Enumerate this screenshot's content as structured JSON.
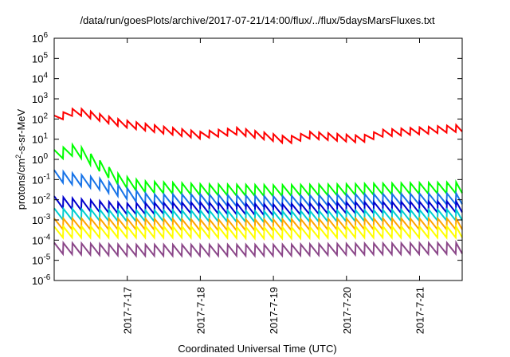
{
  "chart_data": {
    "type": "line",
    "title": "/data/run/goesPlots/archive/2017-07-21/14:00/flux/../flux/5daysMarsFluxes.txt",
    "xlabel": "Coordinated Universal Time (UTC)",
    "ylabel": {
      "prefix": "protons/cm",
      "sup": "2",
      "suffix": "-s-sr-MeV"
    },
    "yscale": "log",
    "ylim_exponents": [
      -6,
      6
    ],
    "y_tick_exponents": [
      -6,
      -5,
      -4,
      -3,
      -2,
      -1,
      0,
      1,
      2,
      3,
      4,
      5,
      6
    ],
    "y_tick_base": "10",
    "xlim": [
      "2017-07-16 00:00",
      "2017-07-21 14:00"
    ],
    "x_ticks": [
      {
        "date": "2017-07-17 00:00",
        "label": "2017-7-17"
      },
      {
        "date": "2017-07-18 00:00",
        "label": "2017-7-18"
      },
      {
        "date": "2017-07-19 00:00",
        "label": "2017-7-19"
      },
      {
        "date": "2017-07-20 00:00",
        "label": "2017-7-20"
      },
      {
        "date": "2017-07-21 00:00",
        "label": "2017-7-21"
      }
    ],
    "grid": false,
    "legend": "none",
    "sawtooth_period_hours": 3,
    "series": [
      {
        "color": "#ff0000",
        "log10_values_at_day": [
          [
            0.0,
            2.0
          ],
          [
            0.3,
            2.4
          ],
          [
            0.9,
            1.8
          ],
          [
            1.5,
            1.45
          ],
          [
            2.0,
            1.2
          ],
          [
            2.5,
            1.4
          ],
          [
            3.2,
            0.95
          ],
          [
            3.5,
            1.2
          ],
          [
            4.2,
            1.0
          ],
          [
            4.5,
            1.3
          ],
          [
            5.58,
            1.55
          ]
        ]
      },
      {
        "color": "#00ff00",
        "log10_values_at_day": [
          [
            0.0,
            0.2
          ],
          [
            0.3,
            0.5
          ],
          [
            0.5,
            0.0
          ],
          [
            0.9,
            -1.05
          ],
          [
            1.2,
            -1.35
          ],
          [
            2.0,
            -1.5
          ],
          [
            3.0,
            -1.55
          ],
          [
            4.0,
            -1.5
          ],
          [
            5.58,
            -1.4
          ]
        ]
      },
      {
        "color": "#1874e8",
        "log10_values_at_day": [
          [
            0.0,
            -0.8
          ],
          [
            0.3,
            -1.0
          ],
          [
            0.6,
            -1.2
          ],
          [
            1.0,
            -1.7
          ],
          [
            1.3,
            -2.0
          ],
          [
            2.0,
            -2.0
          ],
          [
            3.0,
            -2.1
          ],
          [
            4.0,
            -2.0
          ],
          [
            5.58,
            -1.95
          ]
        ]
      },
      {
        "color": "#0000cd",
        "log10_values_at_day": [
          [
            0.0,
            -2.1
          ],
          [
            0.5,
            -2.3
          ],
          [
            1.0,
            -2.45
          ],
          [
            2.0,
            -2.4
          ],
          [
            3.0,
            -2.5
          ],
          [
            4.0,
            -2.4
          ],
          [
            5.58,
            -2.35
          ]
        ]
      },
      {
        "color": "#00ced1",
        "log10_values_at_day": [
          [
            0.0,
            -2.7
          ],
          [
            1.0,
            -2.8
          ],
          [
            2.0,
            -2.8
          ],
          [
            3.0,
            -2.85
          ],
          [
            4.0,
            -2.8
          ],
          [
            5.58,
            -2.75
          ]
        ]
      },
      {
        "color": "#ffa500",
        "log10_values_at_day": [
          [
            0.0,
            -3.2
          ],
          [
            1.0,
            -3.2
          ],
          [
            2.0,
            -3.25
          ],
          [
            3.0,
            -3.25
          ],
          [
            4.0,
            -3.2
          ],
          [
            5.58,
            -3.2
          ]
        ]
      },
      {
        "color": "#ffff00",
        "log10_values_at_day": [
          [
            0.0,
            -3.6
          ],
          [
            1.0,
            -3.6
          ],
          [
            2.0,
            -3.6
          ],
          [
            3.0,
            -3.65
          ],
          [
            4.0,
            -3.6
          ],
          [
            5.58,
            -3.6
          ]
        ]
      },
      {
        "color": "#8b4789",
        "log10_values_at_day": [
          [
            0.0,
            -4.4
          ],
          [
            1.0,
            -4.5
          ],
          [
            2.0,
            -4.5
          ],
          [
            3.0,
            -4.5
          ],
          [
            4.0,
            -4.45
          ],
          [
            5.58,
            -4.4
          ]
        ]
      }
    ]
  }
}
